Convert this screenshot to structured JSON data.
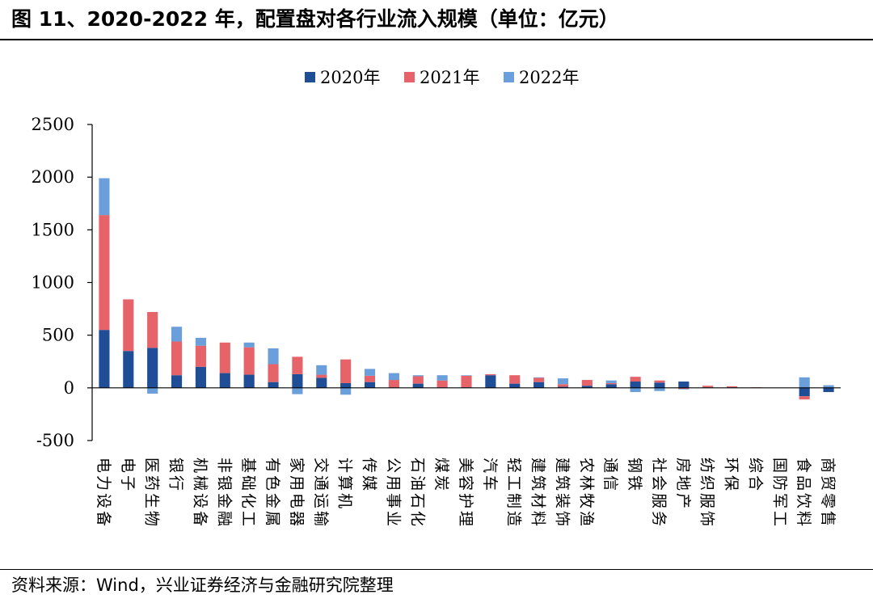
{
  "header": {
    "title": "图 11、2020-2022 年，配置盘对各行业流入规模（单位：亿元）"
  },
  "footer": {
    "source": "资料来源：Wind，兴业证券经济与金融研究院整理"
  },
  "colors": {
    "2020年": "#1f4e96",
    "2021年": "#e66469",
    "2022年": "#6a9fdc"
  },
  "chart_data": {
    "type": "bar",
    "stacked": true,
    "title": "",
    "xlabel": "",
    "ylabel": "",
    "ylim": [
      -500,
      2500
    ],
    "yticks": [
      -500,
      0,
      500,
      1000,
      1500,
      2000,
      2500
    ],
    "legend_position": "top",
    "categories": [
      "电力设备",
      "电子",
      "医药生物",
      "银行",
      "机械设备",
      "非银金融",
      "基础化工",
      "有色金属",
      "家用电器",
      "交通运输",
      "计算机",
      "传媒",
      "公用事业",
      "石油石化",
      "煤炭",
      "美容护理",
      "汽车",
      "轻工制造",
      "建筑材料",
      "建筑装饰",
      "农林牧渔",
      "通信",
      "钢铁",
      "社会服务",
      "房地产",
      "纺织服饰",
      "环保",
      "综合",
      "国防军工",
      "食品饮料",
      "商贸零售"
    ],
    "series": [
      {
        "name": "2020年",
        "values": [
          550,
          350,
          380,
          120,
          200,
          140,
          125,
          55,
          130,
          95,
          45,
          55,
          5,
          40,
          5,
          5,
          120,
          40,
          55,
          10,
          20,
          35,
          60,
          50,
          60,
          5,
          5,
          0,
          0,
          -80,
          -40
        ]
      },
      {
        "name": "2021年",
        "values": [
          1090,
          490,
          340,
          320,
          200,
          290,
          260,
          170,
          165,
          30,
          225,
          60,
          70,
          70,
          65,
          110,
          10,
          80,
          40,
          25,
          55,
          10,
          45,
          20,
          -10,
          15,
          10,
          5,
          0,
          -30,
          0
        ]
      },
      {
        "name": "2022年",
        "values": [
          350,
          0,
          -55,
          140,
          75,
          0,
          45,
          150,
          -60,
          90,
          -65,
          65,
          65,
          10,
          50,
          5,
          0,
          0,
          5,
          55,
          0,
          25,
          -40,
          -30,
          -5,
          0,
          0,
          0,
          0,
          100,
          25
        ]
      }
    ]
  }
}
